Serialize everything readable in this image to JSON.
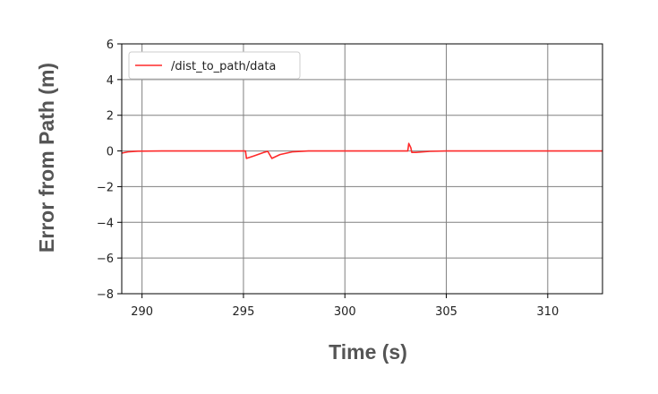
{
  "chart_data": {
    "type": "line",
    "title": "",
    "xlabel": "Time (s)",
    "ylabel": "Error from Path (m)",
    "xlim": [
      289,
      312.7
    ],
    "ylim": [
      -8,
      6
    ],
    "xticks": [
      290,
      295,
      300,
      305,
      310
    ],
    "yticks": [
      6,
      4,
      2,
      0,
      -2,
      -4,
      -6,
      -8
    ],
    "xtick_labels": [
      "290",
      "295",
      "300",
      "305",
      "310"
    ],
    "ytick_labels": [
      "6",
      "4",
      "2",
      "0",
      "−2",
      "−4",
      "−6",
      "−8"
    ],
    "grid": true,
    "legend_position": "top-left",
    "series": [
      {
        "name": "/dist_to_path/data",
        "color": "#ff2a2a",
        "x": [
          289.0,
          289.3,
          289.8,
          291.0,
          295.1,
          295.15,
          295.5,
          296.0,
          296.2,
          296.4,
          296.8,
          297.4,
          298.2,
          300.0,
          303.1,
          303.15,
          303.25,
          303.3,
          303.5,
          304.2,
          305.0,
          312.7
        ],
        "y": [
          -0.12,
          -0.05,
          -0.01,
          0.0,
          0.0,
          -0.42,
          -0.28,
          -0.08,
          -0.02,
          -0.42,
          -0.2,
          -0.05,
          0.0,
          0.0,
          0.0,
          0.42,
          0.18,
          -0.08,
          -0.08,
          -0.02,
          0.0,
          0.0
        ]
      }
    ]
  }
}
